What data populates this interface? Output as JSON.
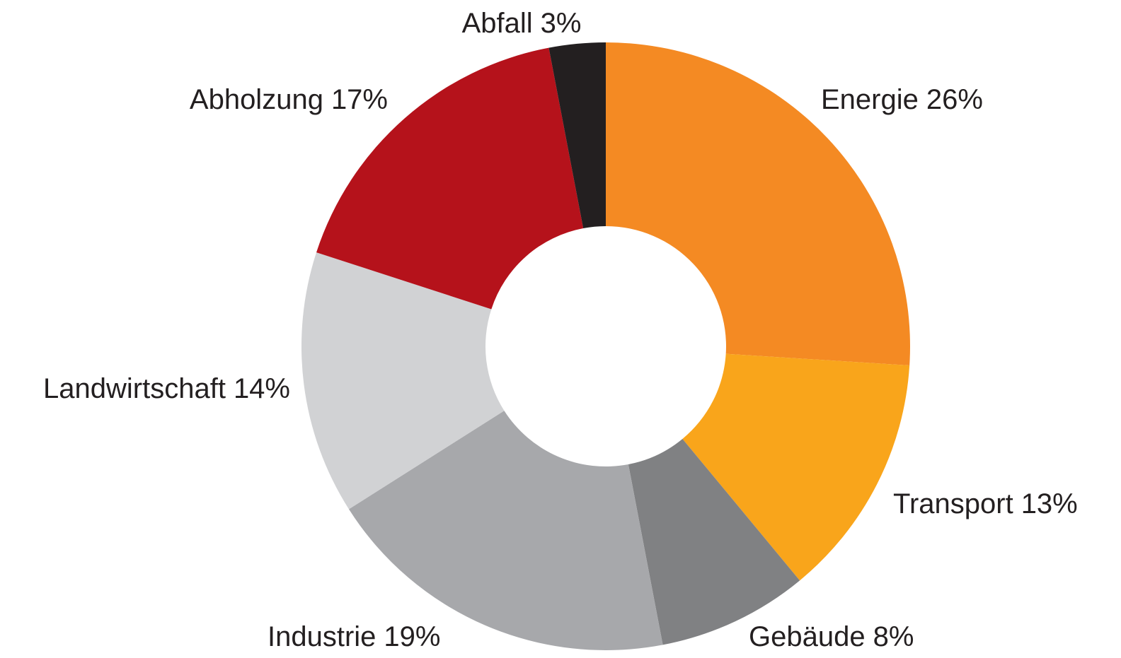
{
  "chart_data": {
    "type": "donut",
    "categories": [
      "Energie",
      "Transport",
      "Gebäude",
      "Industrie",
      "Landwirtschaft",
      "Abholzung",
      "Abfall"
    ],
    "values": [
      26,
      13,
      8,
      19,
      14,
      17,
      3
    ],
    "value_labels": [
      "26%",
      "13%",
      "8%",
      "19%",
      "14%",
      "17%",
      "3%"
    ],
    "colors": [
      "#f48a23",
      "#f9a51b",
      "#808183",
      "#a7a8ab",
      "#d1d2d4",
      "#b5121b",
      "#231f20"
    ]
  }
}
